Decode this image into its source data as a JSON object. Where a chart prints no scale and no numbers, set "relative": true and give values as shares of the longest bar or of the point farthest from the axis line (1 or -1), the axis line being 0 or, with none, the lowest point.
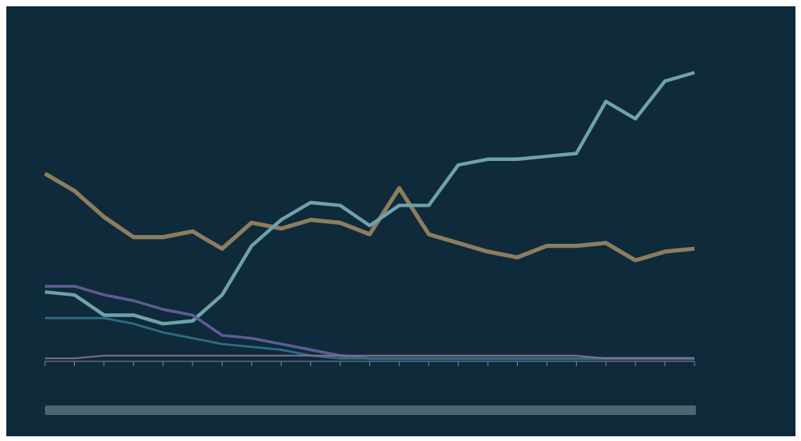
{
  "chart_data": {
    "type": "line",
    "relative": true,
    "categories": [
      null,
      null,
      null,
      null,
      null,
      null,
      null,
      null,
      null,
      null,
      null,
      null,
      null,
      null,
      null,
      null,
      null,
      null,
      null,
      null,
      null,
      null,
      null
    ],
    "series": [
      {
        "color": "#8c7d5e",
        "values": [
          0.65,
          0.59,
          0.5,
          0.43,
          0.43,
          0.45,
          0.39,
          0.48,
          0.46,
          0.49,
          0.48,
          0.44,
          0.6,
          0.44,
          0.41,
          0.38,
          0.36,
          0.4,
          0.4,
          0.41,
          0.35,
          0.38,
          0.39
        ]
      },
      {
        "color": "#6fa2aa",
        "values": [
          0.24,
          0.23,
          0.16,
          0.16,
          0.13,
          0.14,
          0.23,
          0.4,
          0.49,
          0.55,
          0.54,
          0.47,
          0.54,
          0.54,
          0.68,
          0.7,
          0.7,
          0.71,
          0.72,
          0.9,
          0.84,
          0.97,
          1
        ]
      },
      {
        "color": "#5c5c92",
        "values": [
          0.26,
          0.26,
          0.23,
          0.21,
          0.18,
          0.16,
          0.09,
          0.08,
          0.06,
          0.04,
          0.02,
          0.01,
          0.01,
          0.01,
          0.01,
          0.01,
          0.01,
          0.01,
          0.01,
          0.01,
          0.01,
          0.01,
          0.01
        ]
      },
      {
        "color": "#2c6e84",
        "values": [
          0.15,
          0.15,
          0.15,
          0.13,
          0.1,
          0.08,
          0.06,
          0.05,
          0.04,
          0.02,
          0.01,
          0.01,
          0.01,
          0.01,
          0.01,
          0.01,
          0.01,
          0.01,
          0.01,
          0.01,
          0.01,
          0.01,
          0.01
        ]
      },
      {
        "color": "#8a6c92",
        "values": [
          0.01,
          0.01,
          0.02,
          0.02,
          0.02,
          0.02,
          0.02,
          0.02,
          0.02,
          0.02,
          0.02,
          0.02,
          0.02,
          0.02,
          0.02,
          0.02,
          0.02,
          0.02,
          0.02,
          0.01,
          0.01,
          0.01,
          0.01
        ]
      }
    ],
    "grid": false,
    "legend": false,
    "marker": "none",
    "line_style": "solid"
  }
}
